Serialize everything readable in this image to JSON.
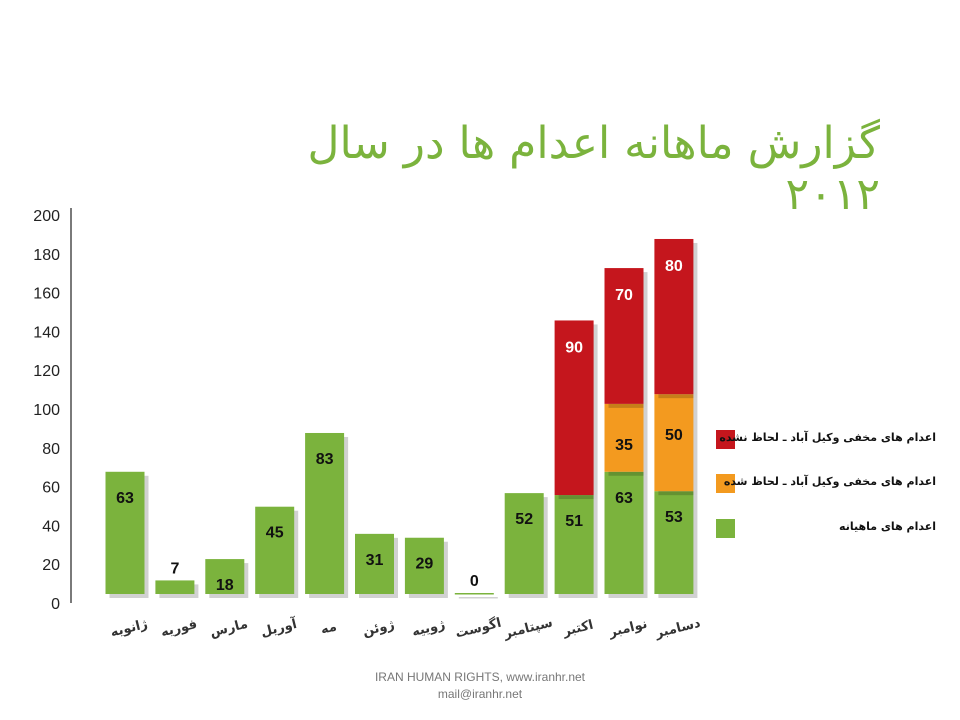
{
  "title": "گزارش ماهانه اعدام ها در سال ۲۰۱۲",
  "footer": {
    "line1": "IRAN HUMAN RIGHTS, www.iranhr.net",
    "line2": "mail@iranhr.net"
  },
  "colors": {
    "monthly": "#7bb33d",
    "lawyer_observed": "#f39a1f",
    "lawyer_not_observed": "#c5161d"
  },
  "chart_data": {
    "type": "bar",
    "stacked": true,
    "categories": [
      "ژانویه",
      "فوریه",
      "مارس",
      "آوریل",
      "مه",
      "ژوئن",
      "ژوییه",
      "اگوست",
      "سپتامبر",
      "اکتبر",
      "نوامبر",
      "دسامبر"
    ],
    "series": [
      {
        "name": "اعدام های ماهیانه",
        "color": "#7bb33d",
        "values": [
          63,
          7,
          18,
          45,
          83,
          31,
          29,
          0,
          52,
          51,
          63,
          53
        ]
      },
      {
        "name": "اعدام های مخفی وکیل آباد ـ لحاظ شده",
        "color": "#f39a1f",
        "values": [
          0,
          0,
          0,
          0,
          0,
          0,
          0,
          0,
          0,
          0,
          35,
          50
        ]
      },
      {
        "name": "اعدام های مخفی وکیل آباد ـ لحاظ نشده",
        "color": "#c5161d",
        "values": [
          0,
          0,
          0,
          0,
          0,
          0,
          0,
          0,
          0,
          90,
          70,
          80
        ]
      }
    ],
    "display_labels": [
      [
        "63",
        "7",
        "18",
        "45",
        "83",
        "31",
        "29",
        "0",
        "52",
        "51",
        "63",
        "53"
      ],
      [
        "",
        "",
        "",
        "",
        "",
        "",
        "",
        "",
        "",
        "",
        "35",
        "50"
      ],
      [
        "",
        "",
        "",
        "",
        "",
        "",
        "",
        "",
        "",
        "90",
        "70",
        "80"
      ]
    ],
    "ylim": [
      0,
      200
    ],
    "yticks": [
      "0",
      "20",
      "40",
      "60",
      "80",
      "100",
      "120",
      "140",
      "160",
      "180",
      "200"
    ],
    "legend": "right",
    "grid": false
  }
}
